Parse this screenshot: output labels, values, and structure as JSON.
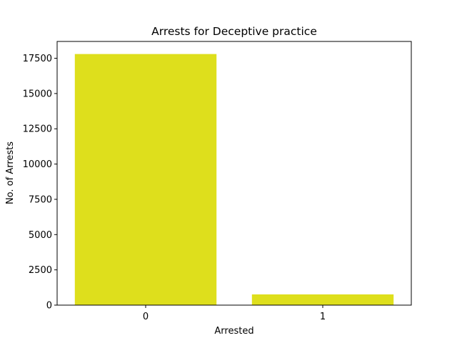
{
  "chart_data": {
    "type": "bar",
    "title": "Arrests for Deceptive practice",
    "xlabel": "Arrested",
    "ylabel": "No. of Arrests",
    "categories": [
      "0",
      "1"
    ],
    "values": [
      17800,
      760
    ],
    "ylim": [
      0,
      18692
    ],
    "yticks": [
      0,
      2500,
      5000,
      7500,
      10000,
      12500,
      15000,
      17500
    ],
    "ytick_labels": [
      "0",
      "2500",
      "5000",
      "7500",
      "10000",
      "12500",
      "15000",
      "17500"
    ],
    "bar_color": "#dedf1c",
    "grid": false,
    "legend": null
  }
}
